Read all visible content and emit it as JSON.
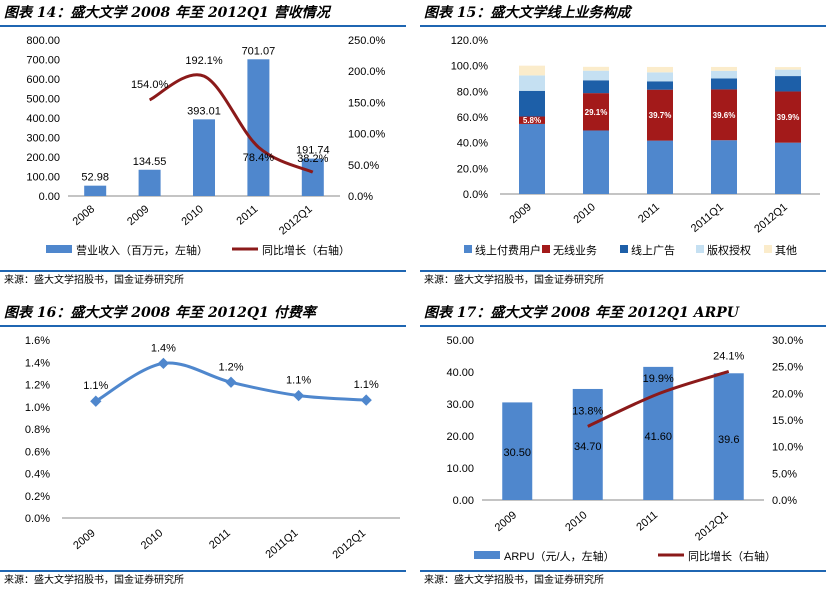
{
  "panels": [
    {
      "title": "图表 14：盛大文学 2008 年至 2012Q1 营收情况",
      "source": "来源：盛大文学招股书，国金证券研究所",
      "chart_data": {
        "type": "bar",
        "categories": [
          "2008",
          "2009",
          "2010",
          "2011",
          "2012Q1"
        ],
        "series": [
          {
            "name": "营业收入（百万元，左轴）",
            "type": "bar",
            "axis": "left",
            "values": [
              52.98,
              134.55,
              393.01,
              701.07,
              191.74
            ],
            "labels": [
              "52.98",
              "134.55",
              "393.01",
              "701.07",
              "191.74"
            ]
          },
          {
            "name": "同比增长（右轴）",
            "type": "line",
            "axis": "right",
            "values": [
              null,
              154.0,
              192.1,
              78.4,
              38.2
            ],
            "labels": [
              "",
              "154.0%",
              "192.1%",
              "78.4%",
              "38.2%"
            ]
          }
        ],
        "ylim": [
          0,
          800
        ],
        "y_ticks": [
          "0.00",
          "100.00",
          "200.00",
          "300.00",
          "400.00",
          "500.00",
          "600.00",
          "700.00",
          "800.00"
        ],
        "y2lim": [
          0,
          250
        ],
        "y2_ticks": [
          "0.0%",
          "50.0%",
          "100.0%",
          "150.0%",
          "200.0%",
          "250.0%"
        ],
        "legend": "bottom",
        "colors": {
          "bar": "#4f87cd",
          "line": "#8b1a1a"
        }
      }
    },
    {
      "title": "图表 15：盛大文学线上业务构成",
      "source": "来源：盛大文学招股书，国金证券研究所",
      "chart_data": {
        "type": "bar",
        "stacked": true,
        "categories": [
          "2009",
          "2010",
          "2011",
          "2011Q1",
          "2012Q1"
        ],
        "series": [
          {
            "name": "线上付费用户",
            "values": [
              54.6,
              49.5,
              41.6,
              41.9,
              40.0
            ]
          },
          {
            "name": "无线业务",
            "values": [
              5.8,
              29.1,
              39.7,
              39.6,
              39.9
            ],
            "labels": [
              "5.8%",
              "29.1%",
              "39.7%",
              "39.6%",
              "39.9%"
            ]
          },
          {
            "name": "线上广告",
            "values": [
              20.0,
              10.0,
              6.5,
              8.5,
              12.0
            ]
          },
          {
            "name": "版权授权",
            "values": [
              12.0,
              7.5,
              7.0,
              6.0,
              5.0
            ]
          },
          {
            "name": "其他",
            "values": [
              7.6,
              3.0,
              4.2,
              3.0,
              2.0
            ]
          }
        ],
        "ylim": [
          0,
          120
        ],
        "y_ticks": [
          "0.0%",
          "20.0%",
          "40.0%",
          "60.0%",
          "80.0%",
          "100.0%",
          "120.0%"
        ],
        "legend": "bottom",
        "colors": [
          "#4f87cd",
          "#a31a1a",
          "#1d5fa8",
          "#c5e0f2",
          "#fbeccb"
        ]
      }
    },
    {
      "title": "图表 16：盛大文学 2008 年至 2012Q1 付费率",
      "source": "来源：盛大文学招股书，国金证券研究所",
      "chart_data": {
        "type": "line",
        "categories": [
          "2009",
          "2010",
          "2011",
          "2011Q1",
          "2012Q1"
        ],
        "series": [
          {
            "values": [
              1.05,
              1.39,
              1.22,
              1.1,
              1.06
            ],
            "labels": [
              "1.1%",
              "1.4%",
              "1.2%",
              "1.1%",
              "1.1%"
            ]
          }
        ],
        "ylim": [
          0,
          1.6
        ],
        "y_ticks": [
          "0.0%",
          "0.2%",
          "0.4%",
          "0.6%",
          "0.8%",
          "1.0%",
          "1.2%",
          "1.4%",
          "1.6%"
        ],
        "colors": {
          "line": "#4f87cd"
        }
      }
    },
    {
      "title": "图表 17：盛大文学 2008 年至 2012Q1 ARPU",
      "source": "来源：盛大文学招股书，国金证券研究所",
      "chart_data": {
        "type": "bar",
        "categories": [
          "2009",
          "2010",
          "2011",
          "2012Q1"
        ],
        "series": [
          {
            "name": "ARPU（元/人，左轴）",
            "type": "bar",
            "axis": "left",
            "values": [
              30.5,
              34.7,
              41.6,
              39.6
            ],
            "labels": [
              "30.50",
              "34.70",
              "41.60",
              "39.6"
            ]
          },
          {
            "name": "同比增长（右轴）",
            "type": "line",
            "axis": "right",
            "values": [
              null,
              13.8,
              19.9,
              24.1
            ],
            "labels": [
              "",
              "13.8%",
              "19.9%",
              "24.1%"
            ]
          }
        ],
        "ylim": [
          0,
          50
        ],
        "y_ticks": [
          "0.00",
          "10.00",
          "20.00",
          "30.00",
          "40.00",
          "50.00"
        ],
        "y2lim": [
          0,
          30
        ],
        "y2_ticks": [
          "0.0%",
          "5.0%",
          "10.0%",
          "15.0%",
          "20.0%",
          "25.0%",
          "30.0%"
        ],
        "legend": "bottom",
        "colors": {
          "bar": "#4f87cd",
          "line": "#8b1a1a"
        }
      }
    }
  ]
}
